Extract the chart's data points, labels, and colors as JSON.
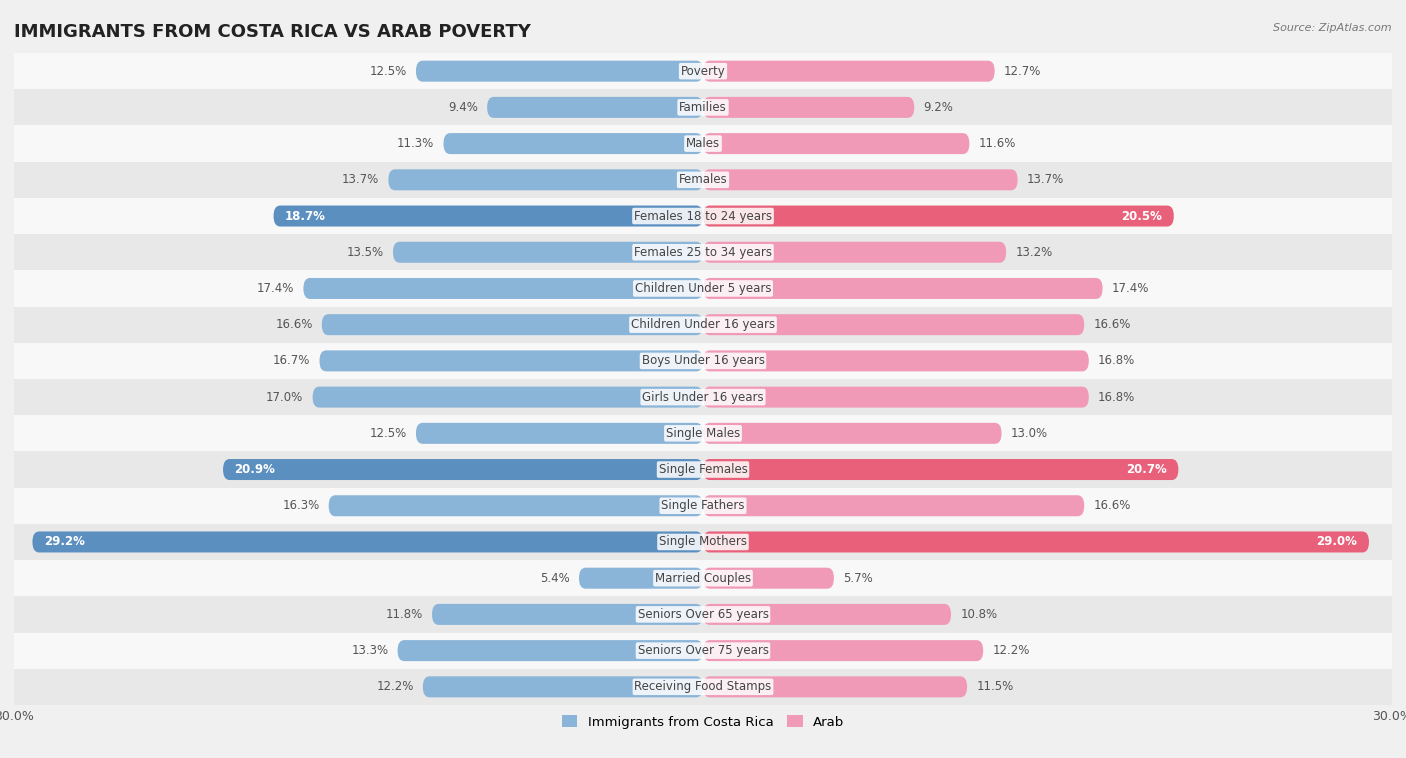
{
  "title": "IMMIGRANTS FROM COSTA RICA VS ARAB POVERTY",
  "source": "Source: ZipAtlas.com",
  "categories": [
    "Poverty",
    "Families",
    "Males",
    "Females",
    "Females 18 to 24 years",
    "Females 25 to 34 years",
    "Children Under 5 years",
    "Children Under 16 years",
    "Boys Under 16 years",
    "Girls Under 16 years",
    "Single Males",
    "Single Females",
    "Single Fathers",
    "Single Mothers",
    "Married Couples",
    "Seniors Over 65 years",
    "Seniors Over 75 years",
    "Receiving Food Stamps"
  ],
  "left_values": [
    12.5,
    9.4,
    11.3,
    13.7,
    18.7,
    13.5,
    17.4,
    16.6,
    16.7,
    17.0,
    12.5,
    20.9,
    16.3,
    29.2,
    5.4,
    11.8,
    13.3,
    12.2
  ],
  "right_values": [
    12.7,
    9.2,
    11.6,
    13.7,
    20.5,
    13.2,
    17.4,
    16.6,
    16.8,
    16.8,
    13.0,
    20.7,
    16.6,
    29.0,
    5.7,
    10.8,
    12.2,
    11.5
  ],
  "left_color": "#8ab4d8",
  "right_color": "#f09ab8",
  "highlight_left_color": "#5b8fc0",
  "highlight_right_color": "#e8607a",
  "highlight_rows": [
    4,
    11,
    13
  ],
  "bar_height": 0.58,
  "xlim": 30.0,
  "bg_color": "#f0f0f0",
  "row_bg_light": "#f8f8f8",
  "row_bg_dark": "#e8e8e8",
  "left_label": "Immigrants from Costa Rica",
  "right_label": "Arab",
  "title_fontsize": 13,
  "value_fontsize": 8.5,
  "category_fontsize": 8.5
}
